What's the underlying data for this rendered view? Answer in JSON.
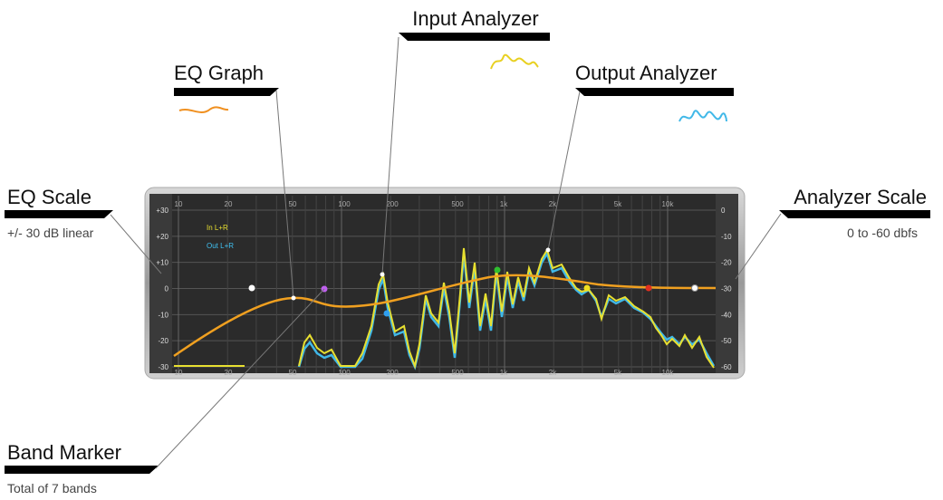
{
  "callouts": [
    {
      "title": "Input Analyzer"
    },
    {
      "title": "EQ Graph"
    },
    {
      "title": "Output Analyzer"
    },
    {
      "title": "EQ Scale",
      "note": "+/- 30 dB linear"
    },
    {
      "title": "Analyzer Scale",
      "note": "0 to -60 dbfs"
    },
    {
      "title": "Band Marker",
      "note": "Total of 7 bands"
    }
  ],
  "display": {
    "eq_scale": [
      "+30",
      "+20",
      "+10",
      "0",
      "-10",
      "-20",
      "-30"
    ],
    "analyzer_scale": [
      "0",
      "-10",
      "-20",
      "-30",
      "-40",
      "-50",
      "-60"
    ],
    "frequencies": [
      "10",
      "20",
      "50",
      "100",
      "200",
      "500",
      "1k",
      "2k",
      "5k",
      "10k"
    ],
    "legend": [
      "In L+R",
      "Out L+R"
    ]
  }
}
